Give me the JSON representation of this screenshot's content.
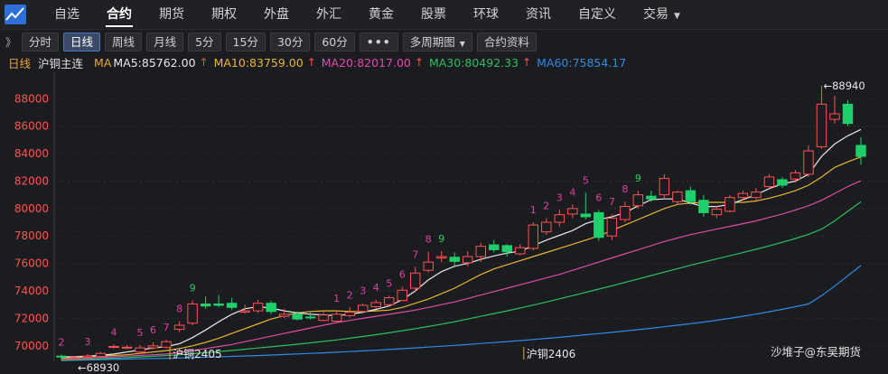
{
  "nav": {
    "items": [
      {
        "label": "自选"
      },
      {
        "label": "合约"
      },
      {
        "label": "期货"
      },
      {
        "label": "期权"
      },
      {
        "label": "外盘"
      },
      {
        "label": "外汇"
      },
      {
        "label": "黄金"
      },
      {
        "label": "股票"
      },
      {
        "label": "环球"
      },
      {
        "label": "资讯"
      },
      {
        "label": "自定义"
      },
      {
        "label": "交易"
      }
    ],
    "active_index": 1
  },
  "toolbar": {
    "collapse": "》",
    "buttons": [
      "分时",
      "日线",
      "周线",
      "月线",
      "5分",
      "15分",
      "30分",
      "60分"
    ],
    "active": "日线",
    "more": "•••",
    "multi_period": "多周期图",
    "contract_info": "合约资料"
  },
  "legend": {
    "period": "日线",
    "name": "沪铜主连",
    "ma_label": "MA",
    "ma5": "MA5:85762.00",
    "ma10": "MA10:83759.00",
    "ma20": "MA20:82017.00",
    "ma30": "MA30:80492.33",
    "ma60": "MA60:75854.17",
    "arrow": "↑"
  },
  "colors": {
    "up": "#ff5252",
    "down": "#1fd06a",
    "ma5": "#e8e8e8",
    "ma10": "#e9b530",
    "ma20": "#e04aa8",
    "ma30": "#2fbd61",
    "ma60": "#2f8ae8",
    "td_count": "#e040a0",
    "td_nine": "#2fd060",
    "axis_text": "#ff5252",
    "grid": "#2a2d34"
  },
  "chart_data": {
    "type": "candlestick",
    "y_ticks": [
      70000,
      72000,
      74000,
      76000,
      78000,
      80000,
      82000,
      84000,
      86000,
      88000
    ],
    "y_tick_labels": [
      "70000",
      "72000",
      "74000",
      "76000",
      "78000",
      "80000",
      "82000",
      "84000",
      "86000",
      "88000"
    ],
    "ylim": [
      69000,
      89400
    ],
    "high_label": "88940",
    "low_label": "68930",
    "contract_labels": [
      "沪铜2405",
      "沪铜2406"
    ],
    "contract_label_index": [
      8,
      35
    ],
    "watermark": "沙堆子@东吴期货",
    "candles": [
      [
        69250,
        69200,
        69350,
        68930
      ],
      [
        69130,
        69150,
        69230,
        69030
      ],
      [
        69160,
        69250,
        69400,
        69050
      ],
      [
        69220,
        69450,
        69550,
        69150
      ],
      [
        69950,
        69950,
        70100,
        69800
      ],
      [
        69900,
        69900,
        70050,
        69750
      ],
      [
        69550,
        69850,
        70050,
        69450
      ],
      [
        69850,
        70000,
        70250,
        69750
      ],
      [
        69900,
        70300,
        70450,
        69800
      ],
      [
        71200,
        71500,
        71800,
        71000
      ],
      [
        71650,
        73050,
        73300,
        71500
      ],
      [
        73050,
        72900,
        73600,
        72700
      ],
      [
        73050,
        72950,
        73700,
        72800
      ],
      [
        73100,
        72800,
        73500,
        72600
      ],
      [
        72450,
        72550,
        73000,
        72350
      ],
      [
        72550,
        73100,
        73350,
        72400
      ],
      [
        73100,
        72500,
        73300,
        72300
      ],
      [
        72150,
        72300,
        72700,
        72000
      ],
      [
        72300,
        71950,
        72500,
        71850
      ],
      [
        72100,
        72050,
        72450,
        71900
      ],
      [
        71850,
        72250,
        72450,
        71800
      ],
      [
        71800,
        72300,
        72550,
        71650
      ],
      [
        72200,
        72450,
        72800,
        72050
      ],
      [
        72500,
        72950,
        73100,
        72350
      ],
      [
        72850,
        73150,
        73350,
        72700
      ],
      [
        73000,
        73500,
        73650,
        72900
      ],
      [
        73300,
        74050,
        74300,
        73250
      ],
      [
        74200,
        75300,
        75750,
        73900
      ],
      [
        75500,
        76100,
        76850,
        75350
      ],
      [
        76400,
        76500,
        76900,
        76100
      ],
      [
        76450,
        76150,
        76800,
        75700
      ],
      [
        76050,
        76500,
        76900,
        75800
      ],
      [
        76500,
        77250,
        77500,
        76100
      ],
      [
        77350,
        77000,
        77700,
        76800
      ],
      [
        77300,
        76850,
        77400,
        76500
      ],
      [
        76700,
        77150,
        77400,
        76600
      ],
      [
        77100,
        78800,
        79000,
        76950
      ],
      [
        78300,
        79000,
        79300,
        78100
      ],
      [
        79000,
        79550,
        79900,
        78700
      ],
      [
        79600,
        80000,
        80300,
        79300
      ],
      [
        79600,
        79400,
        81150,
        79200
      ],
      [
        79700,
        77900,
        79900,
        77650
      ],
      [
        78000,
        79300,
        79600,
        77700
      ],
      [
        79200,
        80150,
        80500,
        79000
      ],
      [
        80200,
        81000,
        81300,
        80000
      ],
      [
        80900,
        80700,
        81300,
        80500
      ],
      [
        81000,
        82200,
        82500,
        80700
      ],
      [
        80500,
        81200,
        81300,
        80300
      ],
      [
        81300,
        80500,
        81600,
        80300
      ],
      [
        80600,
        79700,
        81000,
        79400
      ],
      [
        79550,
        79950,
        80200,
        79300
      ],
      [
        79800,
        80800,
        81000,
        79700
      ],
      [
        80800,
        81100,
        81300,
        80600
      ],
      [
        80800,
        81200,
        81500,
        80600
      ],
      [
        81600,
        82300,
        82500,
        81450
      ],
      [
        82100,
        81700,
        82300,
        81500
      ],
      [
        82150,
        82600,
        82800,
        81900
      ],
      [
        82500,
        84200,
        84600,
        82300
      ],
      [
        84500,
        87600,
        88940,
        84350
      ],
      [
        86500,
        86900,
        88200,
        86200
      ],
      [
        87600,
        86200,
        87900,
        86000
      ],
      [
        84600,
        83800,
        85200,
        83200
      ]
    ],
    "ma5": [
      69200,
      69200,
      69250,
      69300,
      69400,
      69550,
      69700,
      69850,
      69950,
      70150,
      70600,
      71150,
      71750,
      72300,
      72700,
      72850,
      72750,
      72550,
      72400,
      72300,
      72250,
      72200,
      72300,
      72450,
      72650,
      72900,
      73350,
      74000,
      74800,
      75400,
      75800,
      76000,
      76300,
      76550,
      76750,
      76900,
      77300,
      77700,
      78050,
      78400,
      78900,
      79200,
      79400,
      79700,
      80200,
      80650,
      80700,
      80700,
      80400,
      80150,
      80150,
      80300,
      80650,
      81000,
      81450,
      81800,
      82000,
      82500,
      83800,
      84700,
      85300,
      85760
    ],
    "ma10": [
      69100,
      69150,
      69200,
      69250,
      69300,
      69350,
      69450,
      69550,
      69650,
      69800,
      70000,
      70250,
      70550,
      70900,
      71250,
      71600,
      71950,
      72200,
      72400,
      72500,
      72550,
      72550,
      72500,
      72500,
      72550,
      72600,
      72800,
      73100,
      73400,
      73800,
      74200,
      74700,
      75200,
      75600,
      75900,
      76200,
      76500,
      76800,
      77100,
      77400,
      77700,
      78000,
      78400,
      78800,
      79200,
      79600,
      80000,
      80300,
      80400,
      80450,
      80450,
      80450,
      80450,
      80550,
      80750,
      81000,
      81300,
      81700,
      82300,
      83000,
      83400,
      83760
    ],
    "ma20": [
      69000,
      69050,
      69100,
      69150,
      69200,
      69250,
      69300,
      69350,
      69400,
      69500,
      69650,
      69800,
      69950,
      70100,
      70300,
      70500,
      70700,
      70900,
      71100,
      71300,
      71500,
      71700,
      71850,
      72000,
      72150,
      72300,
      72450,
      72600,
      72800,
      73000,
      73200,
      73450,
      73700,
      73950,
      74200,
      74450,
      74700,
      74950,
      75200,
      75500,
      75800,
      76100,
      76400,
      76700,
      77000,
      77300,
      77600,
      77850,
      78100,
      78300,
      78500,
      78700,
      78900,
      79100,
      79350,
      79600,
      79900,
      80200,
      80600,
      81100,
      81600,
      82020
    ],
    "ma30": [
      68950,
      68980,
      69020,
      69060,
      69100,
      69140,
      69190,
      69240,
      69290,
      69350,
      69420,
      69500,
      69580,
      69660,
      69750,
      69840,
      69930,
      70020,
      70120,
      70220,
      70320,
      70430,
      70550,
      70680,
      70810,
      70950,
      71100,
      71250,
      71410,
      71580,
      71760,
      71950,
      72150,
      72350,
      72550,
      72760,
      72970,
      73190,
      73420,
      73650,
      73890,
      74130,
      74370,
      74620,
      74870,
      75120,
      75370,
      75620,
      75870,
      76100,
      76330,
      76560,
      76790,
      77030,
      77280,
      77540,
      77820,
      78120,
      78500,
      79100,
      79800,
      80490
    ],
    "ma60": [
      68930,
      68950,
      68970,
      68990,
      69010,
      69030,
      69050,
      69070,
      69090,
      69110,
      69140,
      69170,
      69200,
      69230,
      69260,
      69290,
      69330,
      69370,
      69410,
      69450,
      69490,
      69530,
      69580,
      69630,
      69680,
      69730,
      69790,
      69850,
      69910,
      69970,
      70030,
      70100,
      70170,
      70240,
      70310,
      70380,
      70460,
      70540,
      70620,
      70710,
      70800,
      70890,
      70980,
      71080,
      71180,
      71280,
      71390,
      71500,
      71610,
      71730,
      71860,
      72000,
      72150,
      72310,
      72480,
      72660,
      72850,
      73050,
      73650,
      74350,
      75100,
      75850
    ],
    "td_markers": [
      {
        "i": 0,
        "label": "2",
        "kind": "count"
      },
      {
        "i": 2,
        "label": "3",
        "kind": "count"
      },
      {
        "i": 4,
        "label": "4",
        "kind": "count"
      },
      {
        "i": 6,
        "label": "5",
        "kind": "count"
      },
      {
        "i": 7,
        "label": "6",
        "kind": "count"
      },
      {
        "i": 8,
        "label": "7",
        "kind": "count"
      },
      {
        "i": 9,
        "label": "8",
        "kind": "count"
      },
      {
        "i": 10,
        "label": "9",
        "kind": "nine"
      },
      {
        "i": 21,
        "label": "1",
        "kind": "count"
      },
      {
        "i": 22,
        "label": "2",
        "kind": "count"
      },
      {
        "i": 23,
        "label": "3",
        "kind": "count"
      },
      {
        "i": 24,
        "label": "4",
        "kind": "count"
      },
      {
        "i": 25,
        "label": "5",
        "kind": "count"
      },
      {
        "i": 26,
        "label": "6",
        "kind": "count"
      },
      {
        "i": 27,
        "label": "7",
        "kind": "count"
      },
      {
        "i": 28,
        "label": "8",
        "kind": "count"
      },
      {
        "i": 29,
        "label": "9",
        "kind": "nine"
      },
      {
        "i": 36,
        "label": "1",
        "kind": "count"
      },
      {
        "i": 37,
        "label": "2",
        "kind": "count"
      },
      {
        "i": 38,
        "label": "3",
        "kind": "count"
      },
      {
        "i": 39,
        "label": "4",
        "kind": "count"
      },
      {
        "i": 40,
        "label": "5",
        "kind": "count"
      },
      {
        "i": 41,
        "label": "6",
        "kind": "count"
      },
      {
        "i": 42,
        "label": "7",
        "kind": "count"
      },
      {
        "i": 43,
        "label": "8",
        "kind": "count"
      },
      {
        "i": 44,
        "label": "9",
        "kind": "nine"
      }
    ]
  }
}
